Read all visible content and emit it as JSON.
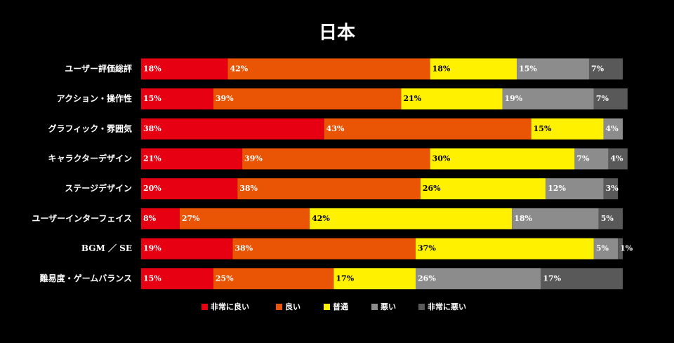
{
  "chart_data": {
    "type": "stacked-bar-horizontal",
    "title": "日本",
    "categories": [
      "ユーザー評価総評",
      "アクション・操作性",
      "グラフィック・雰囲気",
      "キャラクターデザイン",
      "ステージデザイン",
      "ユーザーインターフェイス",
      "BGM ／ SE",
      "難易度・ゲームバランス"
    ],
    "xlim": [
      0,
      100
    ],
    "series": [
      {
        "name": "非常に良い",
        "color": "#e60012",
        "label_color": "#ffffff",
        "values": [
          18,
          15,
          38,
          21,
          20,
          8,
          19,
          15
        ],
        "value_labels": [
          "18%",
          "15%",
          "38%",
          "21%",
          "20%",
          "8%",
          "19%",
          "15%"
        ]
      },
      {
        "name": "良い",
        "color": "#e95504",
        "label_color": "#ffffff",
        "values": [
          42,
          39,
          43,
          39,
          38,
          27,
          38,
          25
        ],
        "value_labels": [
          "42%",
          "39%",
          "43%",
          "39%",
          "38%",
          "27%",
          "38%",
          "25%"
        ]
      },
      {
        "name": "普通",
        "color": "#fff100",
        "label_color": "#000000",
        "values": [
          18,
          21,
          15,
          30,
          26,
          42,
          37,
          17
        ],
        "value_labels": [
          "18%",
          "21%",
          "15%",
          "30%",
          "26%",
          "42%",
          "37%",
          "17%"
        ]
      },
      {
        "name": "悪い",
        "color": "#8c8c8c",
        "label_color": "#ffffff",
        "values": [
          15,
          19,
          4,
          7,
          12,
          18,
          5,
          26
        ],
        "value_labels": [
          "15%",
          "19%",
          "4%",
          "7%",
          "12%",
          "18%",
          "5%",
          "26%"
        ]
      },
      {
        "name": "非常に悪い",
        "color": "#595959",
        "label_color": "#ffffff",
        "values": [
          7,
          7,
          null,
          4,
          3,
          5,
          1,
          17
        ],
        "value_labels": [
          "7%",
          "7%",
          null,
          "4%",
          "3%",
          "5%",
          "1%",
          "17%"
        ]
      }
    ]
  }
}
